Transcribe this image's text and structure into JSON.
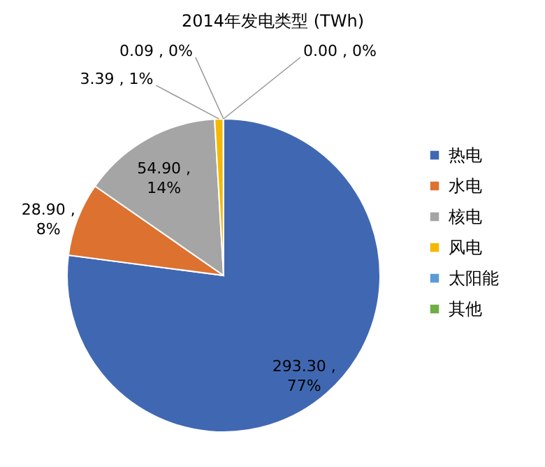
{
  "chart_data": {
    "type": "pie",
    "title": "2014年发电类型 (TWh)",
    "categories": [
      "热电",
      "水电",
      "核电",
      "风电",
      "太阳能",
      "其他"
    ],
    "values": [
      293.3,
      28.9,
      54.9,
      3.39,
      0.09,
      0.0
    ],
    "colors": [
      "#4068b2",
      "#dd7130",
      "#a5a5a5",
      "#f5b800",
      "#5b9bd5",
      "#70ad47"
    ],
    "value_labels": [
      "293.30 , 77%",
      "28.90 , 8%",
      "54.90 , 14%",
      "3.39 , 1%",
      "0.09 , 0%",
      "0.00 , 0%"
    ],
    "legend": "right"
  }
}
